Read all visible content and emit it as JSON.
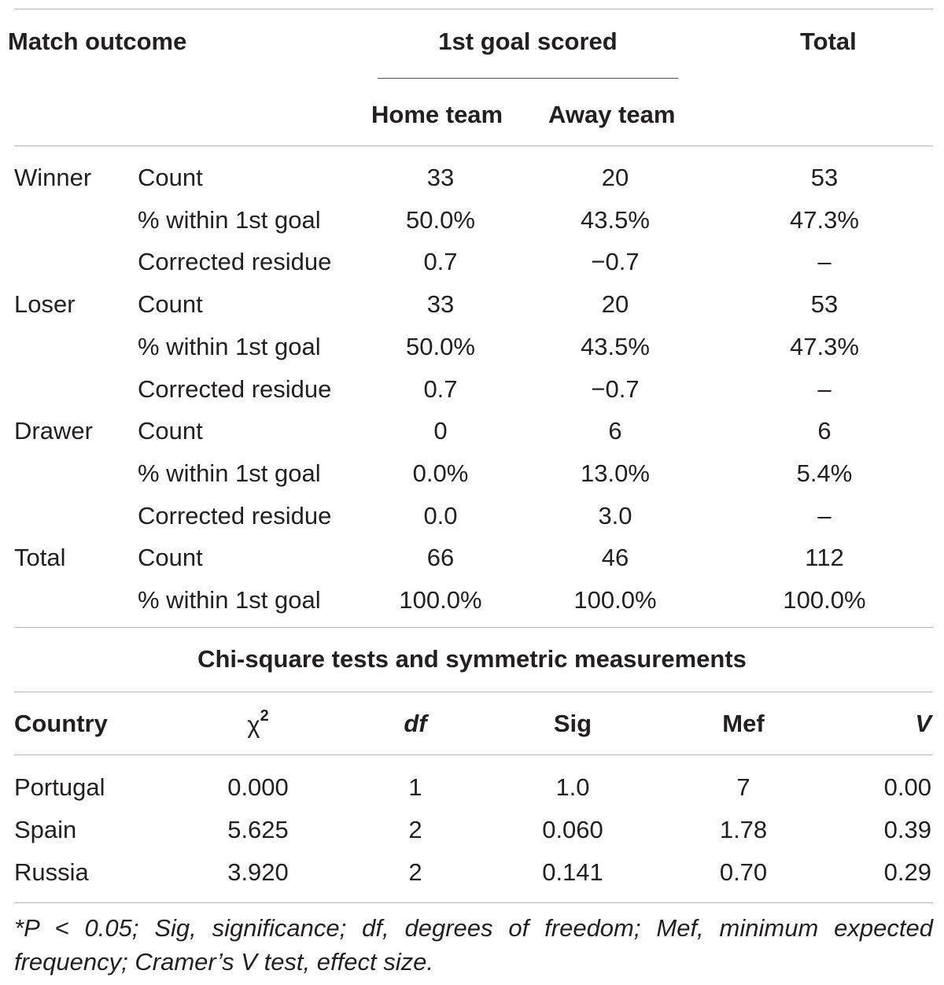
{
  "crosstab": {
    "header": {
      "match_outcome": "Match outcome",
      "first_goal": "1st goal scored",
      "total": "Total",
      "home_team": "Home team",
      "away_team": "Away team"
    },
    "rows": [
      {
        "outcome": "Winner",
        "stat": "Count",
        "home": "33",
        "away": "20",
        "total": "53"
      },
      {
        "outcome": "",
        "stat": "% within 1st goal",
        "home": "50.0%",
        "away": "43.5%",
        "total": "47.3%"
      },
      {
        "outcome": "",
        "stat": "Corrected residue",
        "home": "0.7",
        "away": "−0.7",
        "total": "–"
      },
      {
        "outcome": "Loser",
        "stat": "Count",
        "home": "33",
        "away": "20",
        "total": "53"
      },
      {
        "outcome": "",
        "stat": "% within 1st goal",
        "home": "50.0%",
        "away": "43.5%",
        "total": "47.3%"
      },
      {
        "outcome": "",
        "stat": "Corrected residue",
        "home": "0.7",
        "away": "−0.7",
        "total": "–"
      },
      {
        "outcome": "Drawer",
        "stat": "Count",
        "home": "0",
        "away": "6",
        "total": "6"
      },
      {
        "outcome": "",
        "stat": "% within 1st goal",
        "home": "0.0%",
        "away": "13.0%",
        "total": "5.4%"
      },
      {
        "outcome": "",
        "stat": "Corrected residue",
        "home": "0.0",
        "away": "3.0",
        "total": "–"
      },
      {
        "outcome": "Total",
        "stat": "Count",
        "home": "66",
        "away": "46",
        "total": "112"
      },
      {
        "outcome": "",
        "stat": "% within 1st goal",
        "home": "100.0%",
        "away": "100.0%",
        "total": "100.0%"
      }
    ]
  },
  "chi_section": {
    "title": "Chi-square tests and symmetric measurements",
    "header": {
      "country": "Country",
      "chi": "χ",
      "chi_sup": "2",
      "df": "df",
      "sig": "Sig",
      "mef": "Mef",
      "v": "V"
    },
    "rows": [
      {
        "country": "Portugal",
        "chi": "0.000",
        "df": "1",
        "sig": "1.0",
        "mef": "7",
        "v": "0.00"
      },
      {
        "country": "Spain",
        "chi": "5.625",
        "df": "2",
        "sig": "0.060",
        "mef": "1.78",
        "v": "0.39"
      },
      {
        "country": "Russia",
        "chi": "3.920",
        "df": "2",
        "sig": "0.141",
        "mef": "0.70",
        "v": "0.29"
      }
    ]
  },
  "footnote": "*P < 0.05; Sig, significance; df, degrees of freedom; Mef, minimum expected frequency; Cramer’s V test, effect size."
}
